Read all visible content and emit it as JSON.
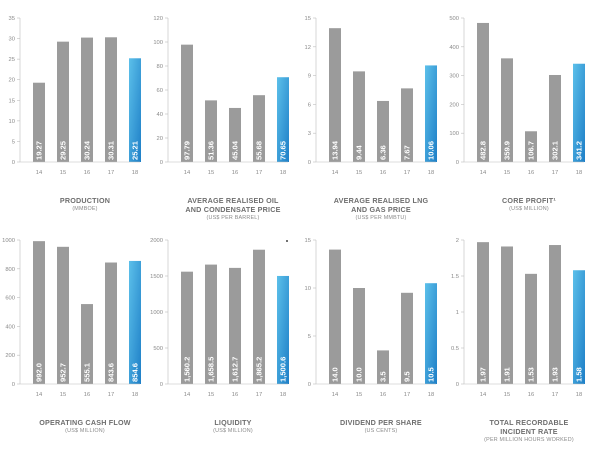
{
  "colors": {
    "bar": "#9b9b9b",
    "highlight": "#1e7fc7",
    "highlight_light": "#5cc0ea",
    "axis": "#bdbdbd"
  },
  "chart_data": [
    {
      "type": "bar",
      "title": "PRODUCTION",
      "subtitle": "(MMBOE)",
      "categories": [
        "14",
        "15",
        "16",
        "17",
        "18"
      ],
      "values": [
        19.27,
        29.25,
        30.24,
        30.31,
        25.21
      ],
      "labels": [
        "19.27",
        "29.25",
        "30.24",
        "30.31",
        "25.21"
      ],
      "ylim": [
        0,
        35
      ],
      "yticks": [
        0,
        5,
        10,
        15,
        20,
        25,
        30,
        35
      ],
      "highlight_index": 4
    },
    {
      "type": "bar",
      "title": "AVERAGE REALISED OIL AND CONDENSATE PRICE",
      "subtitle": "(US$ PER BARREL)",
      "categories": [
        "14",
        "15",
        "16",
        "17",
        "18"
      ],
      "values": [
        97.79,
        51.36,
        45.04,
        55.68,
        70.65
      ],
      "labels": [
        "97.79",
        "51.36",
        "45.04",
        "55.68",
        "70.65"
      ],
      "ylim": [
        0,
        120
      ],
      "yticks": [
        0,
        20,
        40,
        60,
        80,
        100,
        120
      ],
      "highlight_index": 4
    },
    {
      "type": "bar",
      "title": "AVERAGE REALISED LNG AND GAS PRICE",
      "subtitle": "(US$ PER MMBTU)",
      "categories": [
        "14",
        "15",
        "16",
        "17",
        "18"
      ],
      "values": [
        13.94,
        9.44,
        6.36,
        7.67,
        10.06
      ],
      "labels": [
        "13.94",
        "9.44",
        "6.36",
        "7.67",
        "10.06"
      ],
      "ylim": [
        0,
        15
      ],
      "yticks": [
        0,
        3,
        6,
        9,
        12,
        15
      ],
      "highlight_index": 4
    },
    {
      "type": "bar",
      "title": "CORE PROFIT¹",
      "subtitle": "(US$ MILLION)",
      "categories": [
        "14",
        "15",
        "16",
        "17",
        "18"
      ],
      "values": [
        482.8,
        359.9,
        106.7,
        302.1,
        341.2
      ],
      "labels": [
        "482.8",
        "359.9",
        "106.7",
        "302.1",
        "341.2"
      ],
      "ylim": [
        0,
        500
      ],
      "yticks": [
        0,
        100,
        200,
        300,
        400,
        500
      ],
      "highlight_index": 4
    },
    {
      "type": "bar",
      "title": "OPERATING CASH FLOW",
      "subtitle": "(US$ MILLION)",
      "categories": [
        "14",
        "15",
        "16",
        "17",
        "18"
      ],
      "values": [
        992.0,
        952.7,
        555.1,
        843.6,
        854.6
      ],
      "labels": [
        "992.0",
        "952.7",
        "555.1",
        "843.6",
        "854.6"
      ],
      "ylim": [
        0,
        1000
      ],
      "yticks": [
        0,
        200,
        400,
        600,
        800,
        1000
      ],
      "highlight_index": 4
    },
    {
      "type": "bar",
      "title": "LIQUIDITY",
      "subtitle": "(US$ MILLION)",
      "categories": [
        "14",
        "15",
        "16",
        "17",
        "18"
      ],
      "values": [
        1560.2,
        1658.5,
        1612.7,
        1865.2,
        1500.6
      ],
      "labels": [
        "1,560.2",
        "1,658.5",
        "1,612.7",
        "1,865.2",
        "1,500.6"
      ],
      "ylim": [
        0,
        2000
      ],
      "yticks": [
        0,
        500,
        1000,
        1500,
        2000
      ],
      "highlight_index": 4
    },
    {
      "type": "bar",
      "title": "DIVIDEND PER SHARE",
      "subtitle": "(US CENTS)",
      "categories": [
        "14",
        "15",
        "16",
        "17",
        "18"
      ],
      "values": [
        14.0,
        10.0,
        3.5,
        9.5,
        10.5
      ],
      "labels": [
        "14.0",
        "10.0",
        "3.5",
        "9.5",
        "10.5"
      ],
      "ylim": [
        0,
        15
      ],
      "yticks": [
        0,
        5,
        10,
        15
      ],
      "highlight_index": 4
    },
    {
      "type": "bar",
      "title": "TOTAL RECORDABLE INCIDENT RATE",
      "subtitle": "(PER MILLION HOURS WORKED)",
      "categories": [
        "14",
        "15",
        "16",
        "17",
        "18"
      ],
      "values": [
        1.97,
        1.91,
        1.53,
        1.93,
        1.58
      ],
      "labels": [
        "1.97",
        "1.91",
        "1.53",
        "1.93",
        "1.58"
      ],
      "ylim": [
        0,
        2.0
      ],
      "yticks": [
        0,
        0.5,
        1.0,
        1.5,
        2.0
      ],
      "highlight_index": 4
    }
  ]
}
